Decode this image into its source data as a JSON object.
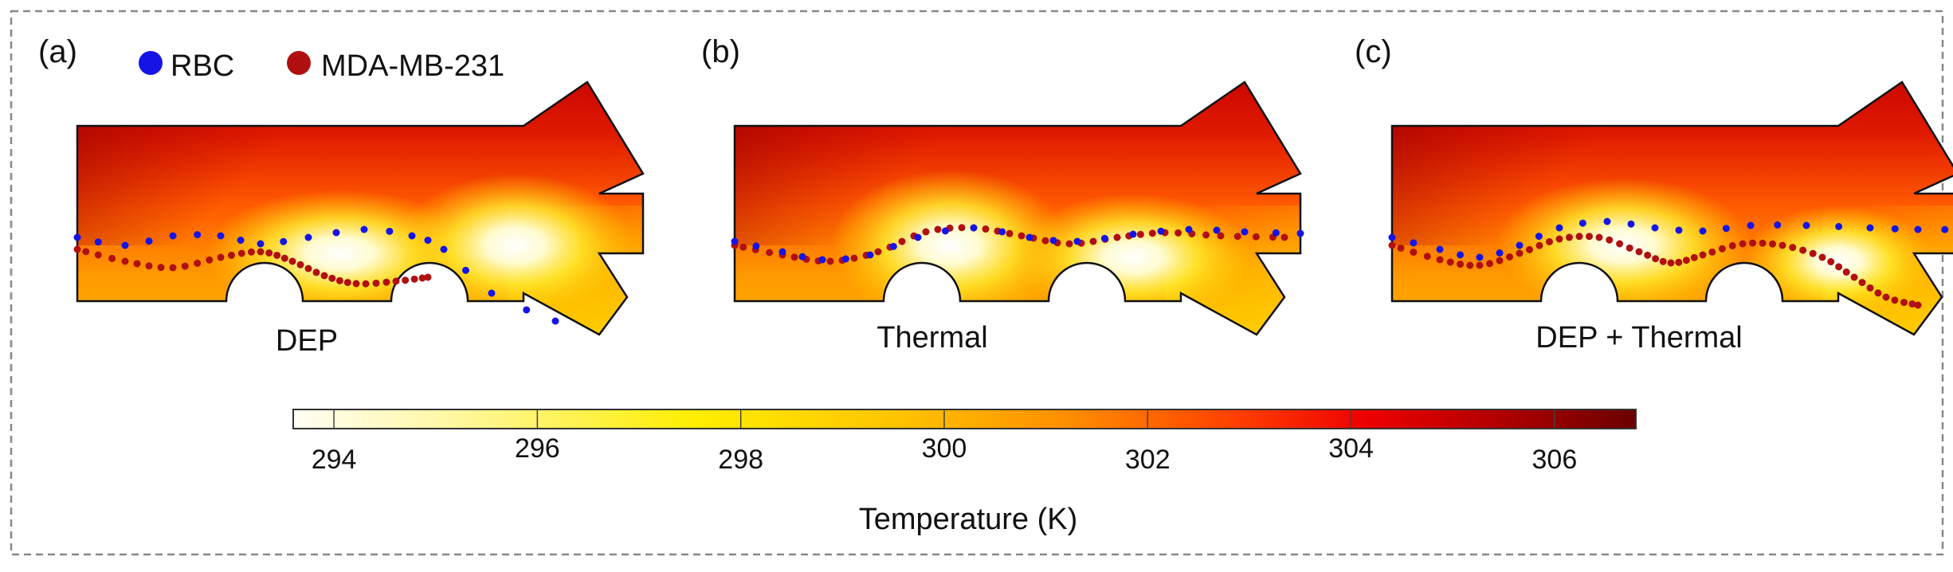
{
  "legend": [
    {
      "label": "RBC",
      "color": "#1414e6"
    },
    {
      "label": "MDA-MB-231",
      "color": "#b01010"
    }
  ],
  "panels": [
    {
      "tag": "(a)",
      "caption": "DEP",
      "outlet": "lower"
    },
    {
      "tag": "(b)",
      "caption": "Thermal",
      "outlet": "middle"
    },
    {
      "tag": "(c)",
      "caption": "DEP + Thermal",
      "outlet": "lower-and-middle"
    }
  ],
  "colorbar": {
    "title": "Temperature (K)",
    "ticks": [
      "294",
      "296",
      "298",
      "300",
      "302",
      "304",
      "306"
    ],
    "tick_values": [
      294,
      296,
      298,
      300,
      302,
      304,
      306
    ],
    "range": [
      293.6,
      306.8
    ],
    "colormap": [
      "#fffef5",
      "#fff7a0",
      "#ffee00",
      "#ffc400",
      "#ff8c00",
      "#ff4000",
      "#ee0000",
      "#b00000",
      "#6a0000"
    ]
  },
  "colors": {
    "rbc": "#1414e6",
    "cancer": "#b01010",
    "border": "#888888"
  }
}
